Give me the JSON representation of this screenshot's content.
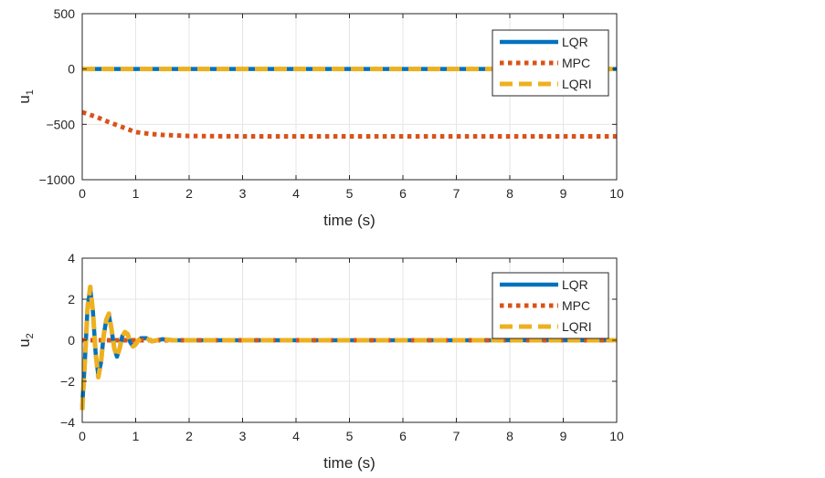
{
  "colors": {
    "LQR": "#0072BD",
    "MPC": "#D95319",
    "LQRI": "#EDB120",
    "grid": "#e6e6e6",
    "axis": "#262626"
  },
  "chart_data": [
    {
      "type": "line",
      "xlabel": "time (s)",
      "ylabel": "u",
      "ylabel_sub": "1",
      "xlim": [
        0,
        10
      ],
      "ylim": [
        -1000,
        500
      ],
      "xticks": [
        0,
        1,
        2,
        3,
        4,
        5,
        6,
        7,
        8,
        9,
        10
      ],
      "yticks": [
        -1000,
        -500,
        0,
        500
      ],
      "grid": true,
      "legend": "top-right",
      "series": [
        {
          "name": "LQR",
          "style": "solid",
          "x": [
            0,
            10
          ],
          "y": [
            0,
            0
          ]
        },
        {
          "name": "MPC",
          "style": "dotted",
          "x": [
            0,
            0.25,
            0.5,
            0.75,
            1.0,
            1.25,
            1.5,
            2.0,
            2.5,
            3,
            4,
            5,
            6,
            7,
            8,
            9,
            10
          ],
          "y": [
            -390,
            -430,
            -480,
            -525,
            -570,
            -585,
            -595,
            -605,
            -607,
            -608,
            -608,
            -608,
            -608,
            -608,
            -608,
            -608,
            -608
          ]
        },
        {
          "name": "LQRI",
          "style": "dashed",
          "x": [
            0,
            10
          ],
          "y": [
            0,
            0
          ]
        }
      ]
    },
    {
      "type": "line",
      "xlabel": "time (s)",
      "ylabel": "u",
      "ylabel_sub": "2",
      "xlim": [
        0,
        10
      ],
      "ylim": [
        -4,
        4
      ],
      "xticks": [
        0,
        1,
        2,
        3,
        4,
        5,
        6,
        7,
        8,
        9,
        10
      ],
      "yticks": [
        -4,
        -2,
        0,
        2,
        4
      ],
      "grid": true,
      "legend": "top-right",
      "series": [
        {
          "name": "LQR",
          "style": "solid",
          "x": [
            0,
            0.05,
            0.1,
            0.15,
            0.2,
            0.25,
            0.3,
            0.35,
            0.4,
            0.45,
            0.5,
            0.55,
            0.6,
            0.65,
            0.7,
            0.75,
            0.8,
            0.85,
            0.9,
            0.95,
            1.0,
            1.05,
            1.1,
            1.2,
            1.3,
            1.4,
            1.5,
            1.7,
            2.0,
            10
          ],
          "y": [
            -3.2,
            -1.0,
            1.6,
            2.5,
            1.4,
            -0.6,
            -1.7,
            -1.1,
            0.2,
            1.0,
            1.2,
            0.5,
            -0.4,
            -0.8,
            -0.4,
            0.2,
            0.4,
            0.3,
            -0.1,
            -0.3,
            -0.2,
            0.0,
            0.1,
            0.1,
            -0.05,
            0.0,
            0.05,
            0.0,
            0.0,
            0.0
          ]
        },
        {
          "name": "MPC",
          "style": "dotted",
          "x": [
            0,
            10
          ],
          "y": [
            0,
            0
          ]
        },
        {
          "name": "LQRI",
          "style": "dashed",
          "x": [
            0,
            0.05,
            0.1,
            0.15,
            0.2,
            0.25,
            0.3,
            0.35,
            0.4,
            0.45,
            0.5,
            0.55,
            0.6,
            0.65,
            0.7,
            0.75,
            0.8,
            0.85,
            0.9,
            0.95,
            1.0,
            1.05,
            1.1,
            1.2,
            1.3,
            1.4,
            1.5,
            1.7,
            2.0,
            10
          ],
          "y": [
            -3.4,
            -1.0,
            1.6,
            2.6,
            1.4,
            -0.6,
            -1.8,
            -1.1,
            0.2,
            1.0,
            1.3,
            0.5,
            -0.4,
            -0.8,
            -0.4,
            0.2,
            0.4,
            0.3,
            -0.1,
            -0.3,
            -0.2,
            0.0,
            0.1,
            0.1,
            -0.05,
            0.0,
            0.05,
            0.0,
            0.0,
            0.0
          ]
        }
      ]
    }
  ]
}
